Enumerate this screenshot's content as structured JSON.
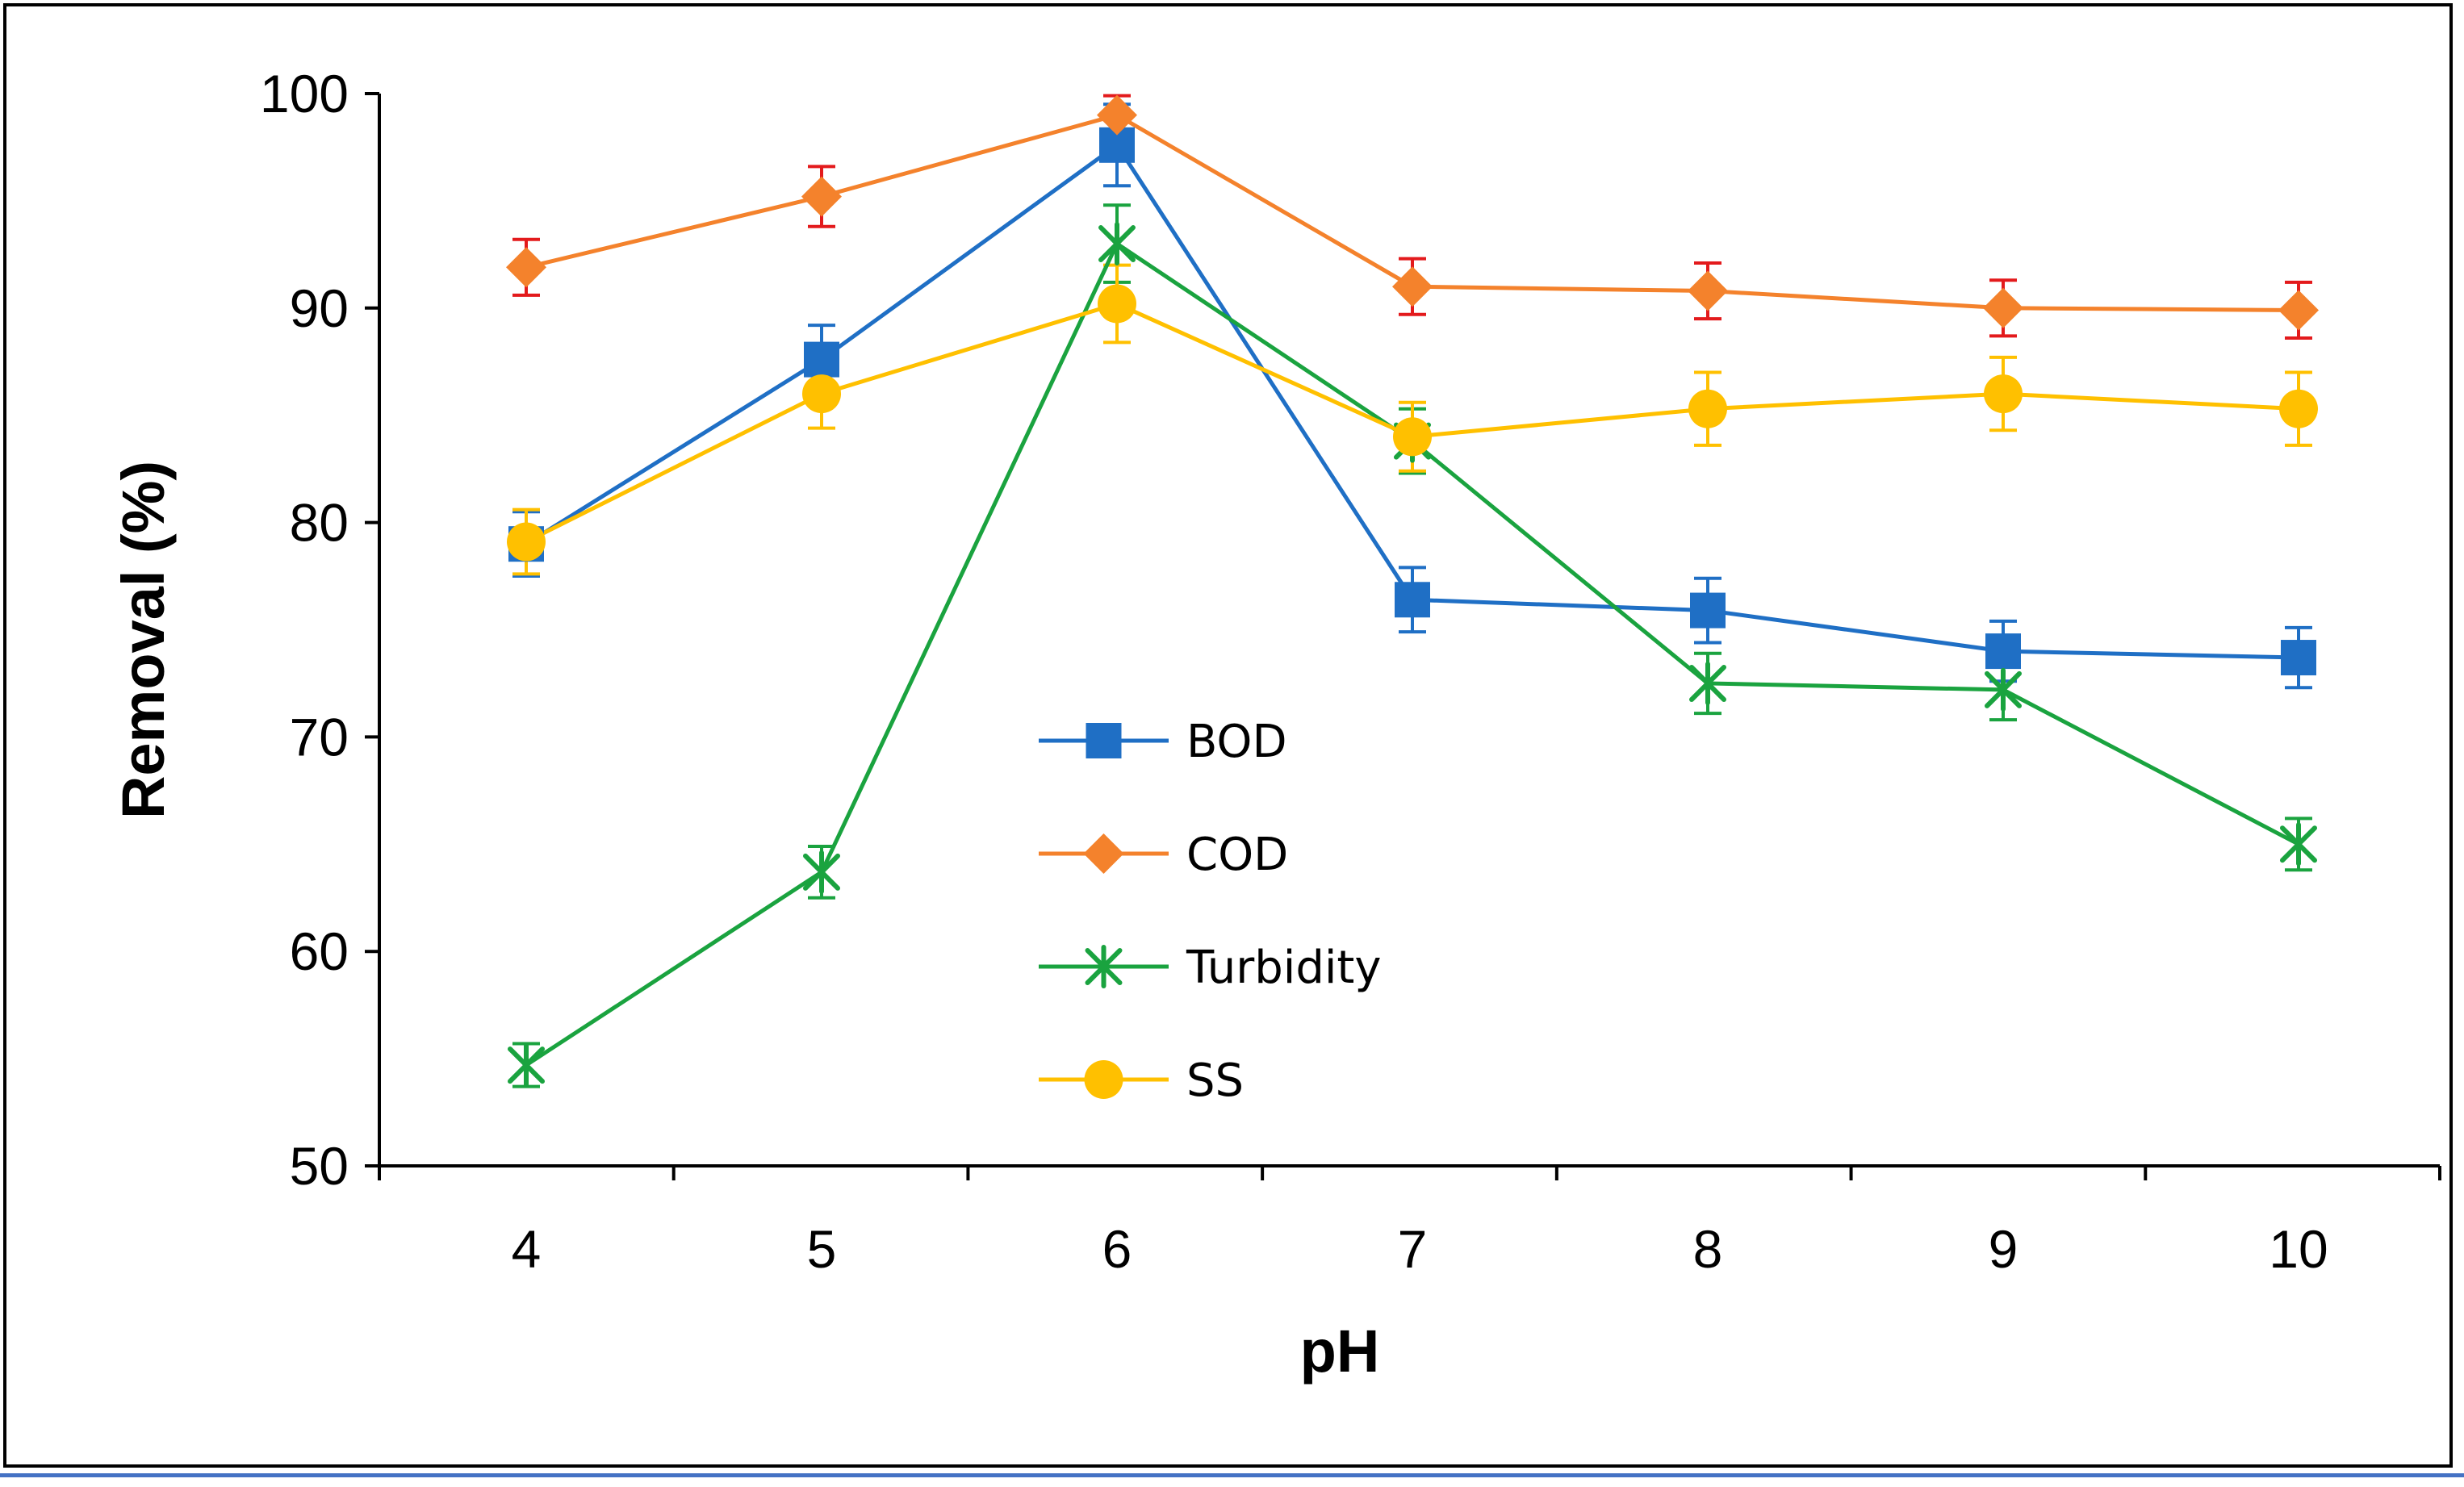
{
  "chart_data": {
    "type": "line",
    "title": "",
    "xlabel": "pH",
    "ylabel": "Removal (%)",
    "categories": [
      "4",
      "5",
      "6",
      "7",
      "8",
      "9",
      "10"
    ],
    "ylim": [
      50,
      100
    ],
    "yticks": [
      50,
      60,
      70,
      80,
      90,
      100
    ],
    "yticklabels": [
      "50",
      "60",
      "70",
      "80",
      "90",
      "100"
    ],
    "grid": false,
    "legend_position": "center",
    "series": [
      {
        "name": "BOD",
        "color": "#1f6fc5",
        "errColor": "#1f6fc5",
        "marker": "square",
        "values": [
          79.0,
          87.6,
          97.6,
          76.4,
          75.9,
          74.0,
          73.7
        ],
        "errors": [
          1.5,
          1.6,
          1.9,
          1.5,
          1.5,
          1.4,
          1.4
        ]
      },
      {
        "name": "COD",
        "color": "#f4822c",
        "errColor": "#e31a1c",
        "marker": "diamond",
        "values": [
          91.9,
          95.2,
          99.0,
          91.0,
          90.8,
          90.0,
          89.9
        ],
        "errors": [
          1.3,
          1.4,
          0.9,
          1.3,
          1.3,
          1.3,
          1.3
        ]
      },
      {
        "name": "Turbidity",
        "color": "#1aa33f",
        "errColor": "#1aa33f",
        "marker": "asterisk",
        "values": [
          54.7,
          63.7,
          93.0,
          83.8,
          72.5,
          72.2,
          65.0
        ],
        "errors": [
          1.0,
          1.2,
          1.8,
          1.5,
          1.4,
          1.4,
          1.2
        ]
      },
      {
        "name": "SS",
        "color": "#ffc000",
        "errColor": "#ffc000",
        "marker": "circle",
        "values": [
          79.1,
          86.0,
          90.2,
          84.0,
          85.3,
          86.0,
          85.3
        ],
        "errors": [
          1.5,
          1.6,
          1.8,
          1.6,
          1.7,
          1.7,
          1.7
        ]
      }
    ]
  }
}
